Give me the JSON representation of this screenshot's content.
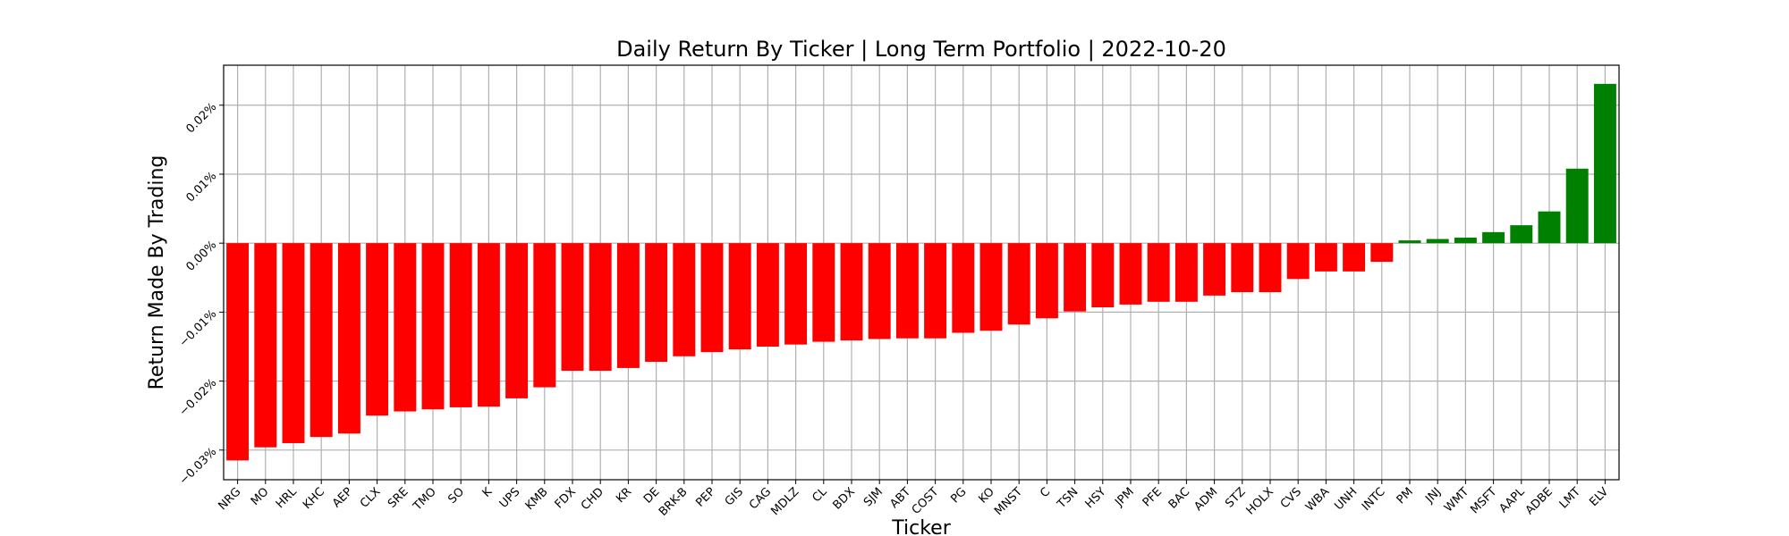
{
  "chart_data": {
    "type": "bar",
    "title": "Daily Return By Ticker | Long Term Portfolio | 2022-10-20",
    "xlabel": "Ticker",
    "ylabel": "Return Made By Trading",
    "categories": [
      "NRG",
      "MO",
      "HRL",
      "KHC",
      "AEP",
      "CLX",
      "SRE",
      "TMO",
      "SO",
      "K",
      "UPS",
      "KMB",
      "FDX",
      "CHD",
      "KR",
      "DE",
      "BRK-B",
      "PEP",
      "GIS",
      "CAG",
      "MDLZ",
      "CL",
      "BDX",
      "SJM",
      "ABT",
      "COST",
      "PG",
      "KO",
      "MNST",
      "C",
      "TSN",
      "HSY",
      "JPM",
      "PFE",
      "BAC",
      "ADM",
      "STZ",
      "HOLX",
      "CVS",
      "WBA",
      "UNH",
      "INTC",
      "PM",
      "JNJ",
      "WMT",
      "MSFT",
      "AAPL",
      "ADBE",
      "LMT",
      "ELV"
    ],
    "values": [
      -0.0315,
      -0.0296,
      -0.029,
      -0.0281,
      -0.0276,
      -0.025,
      -0.0244,
      -0.0241,
      -0.0238,
      -0.0237,
      -0.0225,
      -0.0209,
      -0.0185,
      -0.0185,
      -0.0181,
      -0.0172,
      -0.0164,
      -0.0158,
      -0.0154,
      -0.015,
      -0.0147,
      -0.0143,
      -0.0141,
      -0.0139,
      -0.0138,
      -0.0138,
      -0.013,
      -0.0127,
      -0.0118,
      -0.0109,
      -0.0099,
      -0.0093,
      -0.0089,
      -0.0085,
      -0.0085,
      -0.0076,
      -0.0071,
      -0.0071,
      -0.0052,
      -0.0041,
      -0.0041,
      -0.0027,
      0.0004,
      0.0006,
      0.0008,
      0.0016,
      0.0026,
      0.0046,
      0.0108,
      0.0231
    ],
    "ylim": [
      -0.0343,
      0.0258
    ],
    "yticks": [
      -0.03,
      -0.02,
      -0.01,
      0.0,
      0.01,
      0.02
    ],
    "ytick_labels": [
      "−0.03%",
      "−0.02%",
      "−0.01%",
      "0.00%",
      "0.01%",
      "0.02%"
    ],
    "colors": {
      "negative": "#ff0000",
      "positive": "#008000"
    },
    "grid": true,
    "legend": "none"
  }
}
